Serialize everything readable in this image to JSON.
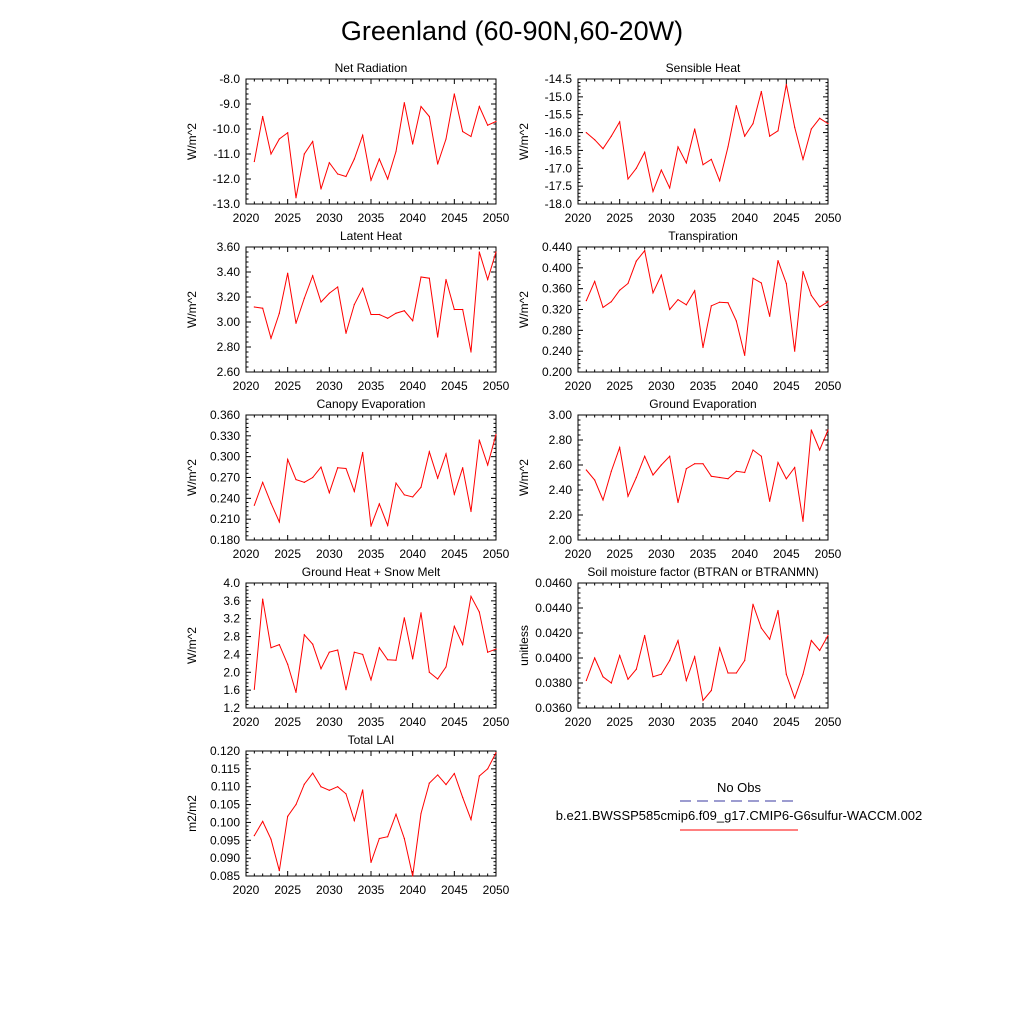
{
  "page_title": "Greenland (60-90N,60-20W)",
  "legend": {
    "obs_label": "No Obs",
    "model_label": "b.e21.BWSSP585cmip6.f09_g17.CMIP6-G6sulfur-WACCM.002",
    "obs_color": "#3a3aa0",
    "model_color": "#ff0000"
  },
  "chart_data": [
    {
      "type": "line",
      "title": "Net Radiation",
      "ylabel": "W/m^2",
      "ylim": [
        -13.0,
        -8.0
      ],
      "yticks": [
        -13.0,
        -12.0,
        -11.0,
        -10.0,
        -9.0,
        -8.0
      ],
      "ytick_labels": [
        "-13.0",
        "-12.0",
        "-11.0",
        "-10.0",
        "-9.0",
        "-8.0"
      ],
      "xlim": [
        2020,
        2050
      ],
      "xticks": [
        2020,
        2025,
        2030,
        2035,
        2040,
        2045,
        2050
      ],
      "x": [
        2021,
        2022,
        2023,
        2024,
        2025,
        2026,
        2027,
        2028,
        2029,
        2030,
        2031,
        2032,
        2033,
        2034,
        2035,
        2036,
        2037,
        2038,
        2039,
        2040,
        2041,
        2042,
        2043,
        2044,
        2045,
        2046,
        2047,
        2048,
        2049,
        2050
      ],
      "series": [
        {
          "color": "#ff0000",
          "values": [
            -11.3,
            -9.5,
            -11.0,
            -10.4,
            -10.15,
            -12.75,
            -11.0,
            -10.5,
            -12.4,
            -11.35,
            -11.8,
            -11.9,
            -11.2,
            -10.25,
            -12.05,
            -11.2,
            -12.0,
            -10.9,
            -8.95,
            -10.6,
            -9.1,
            -9.5,
            -11.4,
            -10.4,
            -8.6,
            -10.1,
            -10.3,
            -9.1,
            -9.85,
            -9.7
          ]
        }
      ]
    },
    {
      "type": "line",
      "title": "Sensible Heat",
      "ylabel": "W/m^2",
      "ylim": [
        -18.0,
        -14.5
      ],
      "yticks": [
        -18.0,
        -17.5,
        -17.0,
        -16.5,
        -16.0,
        -15.5,
        -15.0,
        -14.5
      ],
      "ytick_labels": [
        "-18.0",
        "-17.5",
        "-17.0",
        "-16.5",
        "-16.0",
        "-15.5",
        "-15.0",
        "-14.5"
      ],
      "xlim": [
        2020,
        2050
      ],
      "xticks": [
        2020,
        2025,
        2030,
        2035,
        2040,
        2045,
        2050
      ],
      "x": [
        2021,
        2022,
        2023,
        2024,
        2025,
        2026,
        2027,
        2028,
        2029,
        2030,
        2031,
        2032,
        2033,
        2034,
        2035,
        2036,
        2037,
        2038,
        2039,
        2040,
        2041,
        2042,
        2043,
        2044,
        2045,
        2046,
        2047,
        2048,
        2049,
        2050
      ],
      "series": [
        {
          "color": "#ff0000",
          "values": [
            -16.0,
            -16.2,
            -16.45,
            -16.1,
            -15.7,
            -17.3,
            -17.0,
            -16.55,
            -17.65,
            -17.05,
            -17.55,
            -16.4,
            -16.85,
            -15.9,
            -16.9,
            -16.75,
            -17.35,
            -16.4,
            -15.25,
            -16.1,
            -15.75,
            -14.85,
            -16.1,
            -15.95,
            -14.65,
            -15.85,
            -16.75,
            -15.9,
            -15.6,
            -15.75
          ]
        }
      ]
    },
    {
      "type": "line",
      "title": "Latent Heat",
      "ylabel": "W/m^2",
      "ylim": [
        2.6,
        3.6
      ],
      "yticks": [
        2.6,
        2.8,
        3.0,
        3.2,
        3.4,
        3.6
      ],
      "ytick_labels": [
        "2.60",
        "2.80",
        "3.00",
        "3.20",
        "3.40",
        "3.60"
      ],
      "xlim": [
        2020,
        2050
      ],
      "xticks": [
        2020,
        2025,
        2030,
        2035,
        2040,
        2045,
        2050
      ],
      "x": [
        2021,
        2022,
        2023,
        2024,
        2025,
        2026,
        2027,
        2028,
        2029,
        2030,
        2031,
        2032,
        2033,
        2034,
        2035,
        2036,
        2037,
        2038,
        2039,
        2040,
        2041,
        2042,
        2043,
        2044,
        2045,
        2046,
        2047,
        2048,
        2049,
        2050
      ],
      "series": [
        {
          "color": "#ff0000",
          "values": [
            3.12,
            3.11,
            2.87,
            3.07,
            3.39,
            2.99,
            3.19,
            3.37,
            3.16,
            3.23,
            3.28,
            2.91,
            3.14,
            3.27,
            3.06,
            3.06,
            3.03,
            3.07,
            3.09,
            3.01,
            3.36,
            3.35,
            2.88,
            3.34,
            3.1,
            3.1,
            2.76,
            3.56,
            3.34,
            3.56
          ]
        }
      ]
    },
    {
      "type": "line",
      "title": "Transpiration",
      "ylabel": "W/m^2",
      "ylim": [
        0.2,
        0.44
      ],
      "yticks": [
        0.2,
        0.24,
        0.28,
        0.32,
        0.36,
        0.4,
        0.44
      ],
      "ytick_labels": [
        "0.200",
        "0.240",
        "0.280",
        "0.320",
        "0.360",
        "0.400",
        "0.440"
      ],
      "xlim": [
        2020,
        2050
      ],
      "xticks": [
        2020,
        2025,
        2030,
        2035,
        2040,
        2045,
        2050
      ],
      "x": [
        2021,
        2022,
        2023,
        2024,
        2025,
        2026,
        2027,
        2028,
        2029,
        2030,
        2031,
        2032,
        2033,
        2034,
        2035,
        2036,
        2037,
        2038,
        2039,
        2040,
        2041,
        2042,
        2043,
        2044,
        2045,
        2046,
        2047,
        2048,
        2049,
        2050
      ],
      "series": [
        {
          "color": "#ff0000",
          "values": [
            0.337,
            0.374,
            0.324,
            0.335,
            0.357,
            0.37,
            0.413,
            0.433,
            0.352,
            0.386,
            0.32,
            0.339,
            0.329,
            0.356,
            0.247,
            0.327,
            0.334,
            0.333,
            0.298,
            0.232,
            0.38,
            0.371,
            0.307,
            0.414,
            0.37,
            0.24,
            0.393,
            0.347,
            0.325,
            0.335
          ]
        }
      ]
    },
    {
      "type": "line",
      "title": "Canopy Evaporation",
      "ylabel": "W/m^2",
      "ylim": [
        0.18,
        0.36
      ],
      "yticks": [
        0.18,
        0.21,
        0.24,
        0.27,
        0.3,
        0.33,
        0.36
      ],
      "ytick_labels": [
        "0.180",
        "0.210",
        "0.240",
        "0.270",
        "0.300",
        "0.330",
        "0.360"
      ],
      "xlim": [
        2020,
        2050
      ],
      "xticks": [
        2020,
        2025,
        2030,
        2035,
        2040,
        2045,
        2050
      ],
      "x": [
        2021,
        2022,
        2023,
        2024,
        2025,
        2026,
        2027,
        2028,
        2029,
        2030,
        2031,
        2032,
        2033,
        2034,
        2035,
        2036,
        2037,
        2038,
        2039,
        2040,
        2041,
        2042,
        2043,
        2044,
        2045,
        2046,
        2047,
        2048,
        2049,
        2050
      ],
      "series": [
        {
          "color": "#ff0000",
          "values": [
            0.23,
            0.263,
            0.233,
            0.206,
            0.296,
            0.267,
            0.263,
            0.27,
            0.285,
            0.248,
            0.284,
            0.283,
            0.25,
            0.306,
            0.2,
            0.232,
            0.201,
            0.262,
            0.245,
            0.242,
            0.256,
            0.307,
            0.269,
            0.304,
            0.246,
            0.284,
            0.221,
            0.324,
            0.288,
            0.332
          ]
        }
      ]
    },
    {
      "type": "line",
      "title": "Ground Evaporation",
      "ylabel": "W/m^2",
      "ylim": [
        2.0,
        3.0
      ],
      "yticks": [
        2.0,
        2.2,
        2.4,
        2.6,
        2.8,
        3.0
      ],
      "ytick_labels": [
        "2.00",
        "2.20",
        "2.40",
        "2.60",
        "2.80",
        "3.00"
      ],
      "xlim": [
        2020,
        2050
      ],
      "xticks": [
        2020,
        2025,
        2030,
        2035,
        2040,
        2045,
        2050
      ],
      "x": [
        2021,
        2022,
        2023,
        2024,
        2025,
        2026,
        2027,
        2028,
        2029,
        2030,
        2031,
        2032,
        2033,
        2034,
        2035,
        2036,
        2037,
        2038,
        2039,
        2040,
        2041,
        2042,
        2043,
        2044,
        2045,
        2046,
        2047,
        2048,
        2049,
        2050
      ],
      "series": [
        {
          "color": "#ff0000",
          "values": [
            2.56,
            2.48,
            2.32,
            2.55,
            2.74,
            2.35,
            2.5,
            2.67,
            2.52,
            2.6,
            2.67,
            2.3,
            2.57,
            2.61,
            2.61,
            2.51,
            2.5,
            2.49,
            2.55,
            2.54,
            2.72,
            2.67,
            2.31,
            2.62,
            2.49,
            2.58,
            2.15,
            2.88,
            2.72,
            2.88
          ]
        }
      ]
    },
    {
      "type": "line",
      "title": "Ground Heat + Snow Melt",
      "ylabel": "W/m^2",
      "ylim": [
        1.2,
        4.0
      ],
      "yticks": [
        1.2,
        1.6,
        2.0,
        2.4,
        2.8,
        3.2,
        3.6,
        4.0
      ],
      "ytick_labels": [
        "1.2",
        "1.6",
        "2.0",
        "2.4",
        "2.8",
        "3.2",
        "3.6",
        "4.0"
      ],
      "xlim": [
        2020,
        2050
      ],
      "xticks": [
        2020,
        2025,
        2030,
        2035,
        2040,
        2045,
        2050
      ],
      "x": [
        2021,
        2022,
        2023,
        2024,
        2025,
        2026,
        2027,
        2028,
        2029,
        2030,
        2031,
        2032,
        2033,
        2034,
        2035,
        2036,
        2037,
        2038,
        2039,
        2040,
        2041,
        2042,
        2043,
        2044,
        2045,
        2046,
        2047,
        2048,
        2049,
        2050
      ],
      "series": [
        {
          "color": "#ff0000",
          "values": [
            1.62,
            3.64,
            2.55,
            2.62,
            2.18,
            1.55,
            2.84,
            2.63,
            2.08,
            2.45,
            2.5,
            1.61,
            2.45,
            2.4,
            1.83,
            2.55,
            2.28,
            2.27,
            3.22,
            2.3,
            3.33,
            2.0,
            1.85,
            2.12,
            3.03,
            2.62,
            3.7,
            3.35,
            2.45,
            2.52
          ]
        }
      ]
    },
    {
      "type": "line",
      "title": "Soil moisture factor (BTRAN or BTRANMN)",
      "ylabel": "unitless",
      "ylim": [
        0.036,
        0.046
      ],
      "yticks": [
        0.036,
        0.038,
        0.04,
        0.042,
        0.044,
        0.046
      ],
      "ytick_labels": [
        "0.0360",
        "0.0380",
        "0.0400",
        "0.0420",
        "0.0440",
        "0.0460"
      ],
      "xlim": [
        2020,
        2050
      ],
      "xticks": [
        2020,
        2025,
        2030,
        2035,
        2040,
        2045,
        2050
      ],
      "x": [
        2021,
        2022,
        2023,
        2024,
        2025,
        2026,
        2027,
        2028,
        2029,
        2030,
        2031,
        2032,
        2033,
        2034,
        2035,
        2036,
        2037,
        2038,
        2039,
        2040,
        2041,
        2042,
        2043,
        2044,
        2045,
        2046,
        2047,
        2048,
        2049,
        2050
      ],
      "series": [
        {
          "color": "#ff0000",
          "values": [
            0.0382,
            0.04,
            0.0385,
            0.038,
            0.0402,
            0.0383,
            0.0391,
            0.0418,
            0.0385,
            0.0387,
            0.0398,
            0.0414,
            0.0382,
            0.0401,
            0.0366,
            0.0374,
            0.0408,
            0.0388,
            0.0388,
            0.0398,
            0.0443,
            0.0424,
            0.0415,
            0.0438,
            0.0387,
            0.0368,
            0.0387,
            0.0414,
            0.0406,
            0.0418
          ]
        }
      ]
    },
    {
      "type": "line",
      "title": "Total LAI",
      "ylabel": "m2/m2",
      "ylim": [
        0.085,
        0.12
      ],
      "yticks": [
        0.085,
        0.09,
        0.095,
        0.1,
        0.105,
        0.11,
        0.115,
        0.12
      ],
      "ytick_labels": [
        "0.085",
        "0.090",
        "0.095",
        "0.100",
        "0.105",
        "0.110",
        "0.115",
        "0.120"
      ],
      "xlim": [
        2020,
        2050
      ],
      "xticks": [
        2020,
        2025,
        2030,
        2035,
        2040,
        2045,
        2050
      ],
      "x": [
        2021,
        2022,
        2023,
        2024,
        2025,
        2026,
        2027,
        2028,
        2029,
        2030,
        2031,
        2032,
        2033,
        2034,
        2035,
        2036,
        2037,
        2038,
        2039,
        2040,
        2041,
        2042,
        2043,
        2044,
        2045,
        2046,
        2047,
        2048,
        2049,
        2050
      ],
      "series": [
        {
          "color": "#ff0000",
          "values": [
            0.0963,
            0.1003,
            0.0953,
            0.0865,
            0.1017,
            0.105,
            0.1107,
            0.1138,
            0.11,
            0.109,
            0.11,
            0.108,
            0.1005,
            0.1091,
            0.0888,
            0.0955,
            0.096,
            0.1023,
            0.0955,
            0.085,
            0.1025,
            0.111,
            0.1133,
            0.1106,
            0.1137,
            0.107,
            0.1008,
            0.113,
            0.115,
            0.1195
          ]
        }
      ]
    }
  ]
}
